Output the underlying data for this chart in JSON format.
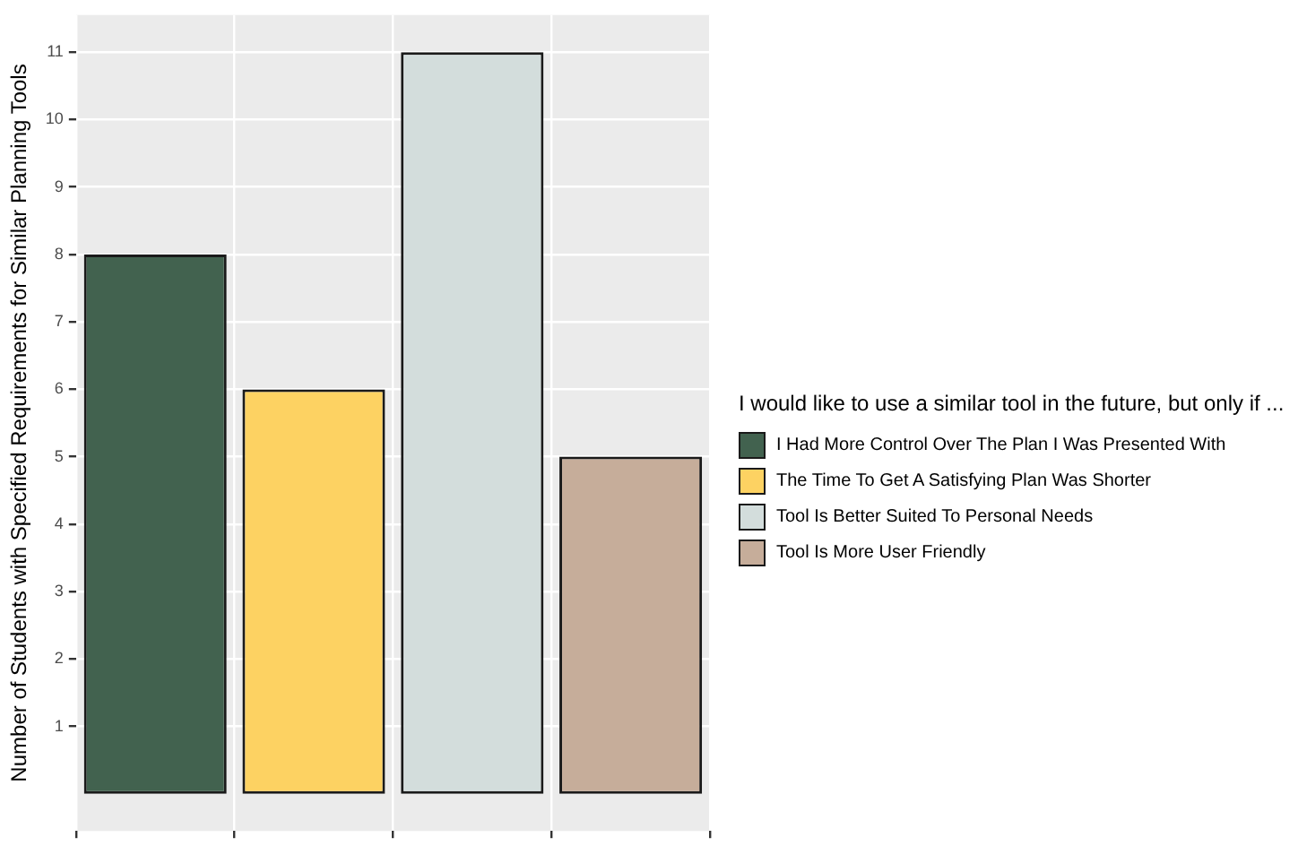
{
  "chart_data": {
    "type": "bar",
    "ylabel": "Number of Students with Specified Requirements for Similar Planning Tools",
    "legend_title": "I would like to use a similar tool in the future, but only if ...",
    "categories": [
      null,
      null,
      null,
      null
    ],
    "series": [
      {
        "name": "I Had More Control Over The Plan I Was Presented With",
        "color": "#42624f",
        "values": [
          8,
          null,
          null,
          null
        ]
      },
      {
        "name": "The Time To Get A Satisfying Plan Was Shorter",
        "color": "#fdd262",
        "values": [
          null,
          6,
          null,
          null
        ]
      },
      {
        "name": "Tool Is Better Suited To Personal Needs",
        "color": "#d3dddc",
        "values": [
          null,
          null,
          11,
          null
        ]
      },
      {
        "name": "Tool Is More User Friendly",
        "color": "#c6ad9a",
        "values": [
          null,
          null,
          null,
          5
        ]
      }
    ],
    "ylim": [
      -0.55,
      11.55
    ],
    "yticks": [
      1,
      2,
      3,
      4,
      5,
      6,
      7,
      8,
      9,
      10,
      11
    ],
    "grid": true,
    "legend": "right",
    "tick_labels": "y"
  }
}
